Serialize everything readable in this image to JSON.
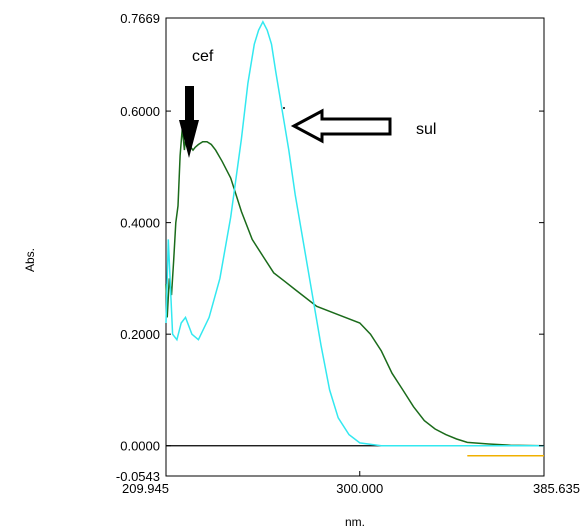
{
  "chart_data": {
    "type": "line",
    "title": "",
    "xlabel": "nm.",
    "ylabel": "Abs.",
    "xlim": [
      209.945,
      385.635
    ],
    "ylim": [
      -0.0543,
      0.7669
    ],
    "x_ticks": [
      "209.945",
      "300.000",
      "385.635"
    ],
    "y_ticks": [
      "0.7669",
      "0.6000",
      "0.4000",
      "0.2000",
      "0.0000",
      "-0.0543"
    ],
    "colors": {
      "cef": "#1b6b1b",
      "sul": "#33e8f0",
      "baseline": "#000000",
      "extra": "#f0b000"
    },
    "annotations": [
      {
        "label": "cef",
        "arrow": "down"
      },
      {
        "label": "sul",
        "arrow": "left"
      }
    ],
    "series": [
      {
        "name": "cef",
        "x": [
          209.945,
          210.5,
          211.5,
          212.5,
          213.5,
          214.5,
          215.5,
          216.5,
          217.5,
          218.5,
          219.5,
          220.5,
          221.5,
          222.5,
          223.5,
          225,
          227,
          229,
          231,
          233,
          236,
          240,
          245,
          250,
          255,
          260,
          265,
          270,
          280,
          290,
          300,
          305,
          310,
          315,
          320,
          325,
          330,
          335,
          340,
          345,
          350,
          360,
          370,
          385.635
        ],
        "y": [
          0.29,
          0.23,
          0.3,
          0.27,
          0.33,
          0.4,
          0.43,
          0.52,
          0.57,
          0.53,
          0.57,
          0.58,
          0.535,
          0.53,
          0.535,
          0.54,
          0.545,
          0.545,
          0.54,
          0.53,
          0.51,
          0.48,
          0.42,
          0.37,
          0.34,
          0.31,
          0.295,
          0.28,
          0.25,
          0.235,
          0.22,
          0.2,
          0.17,
          0.13,
          0.1,
          0.07,
          0.045,
          0.03,
          0.02,
          0.012,
          0.006,
          0.003,
          0.001,
          0.0
        ]
      },
      {
        "name": "sul",
        "x": [
          209.945,
          211,
          213,
          215,
          217,
          219,
          222,
          225,
          230,
          235,
          240,
          245,
          248,
          251,
          253,
          255,
          257,
          259,
          261,
          264,
          267,
          270,
          274,
          278,
          282,
          286,
          290,
          295,
          300,
          310,
          320,
          330,
          340,
          350,
          385.635
        ],
        "y": [
          0.22,
          0.37,
          0.2,
          0.19,
          0.22,
          0.23,
          0.2,
          0.19,
          0.23,
          0.3,
          0.41,
          0.55,
          0.65,
          0.72,
          0.745,
          0.76,
          0.745,
          0.72,
          0.67,
          0.6,
          0.53,
          0.45,
          0.36,
          0.27,
          0.18,
          0.1,
          0.05,
          0.02,
          0.005,
          0.0,
          0.0,
          0.0,
          0.0,
          0.0,
          0.0
        ]
      },
      {
        "name": "",
        "x": [
          350,
          385.635
        ],
        "y": [
          -0.018,
          -0.018
        ]
      }
    ]
  }
}
